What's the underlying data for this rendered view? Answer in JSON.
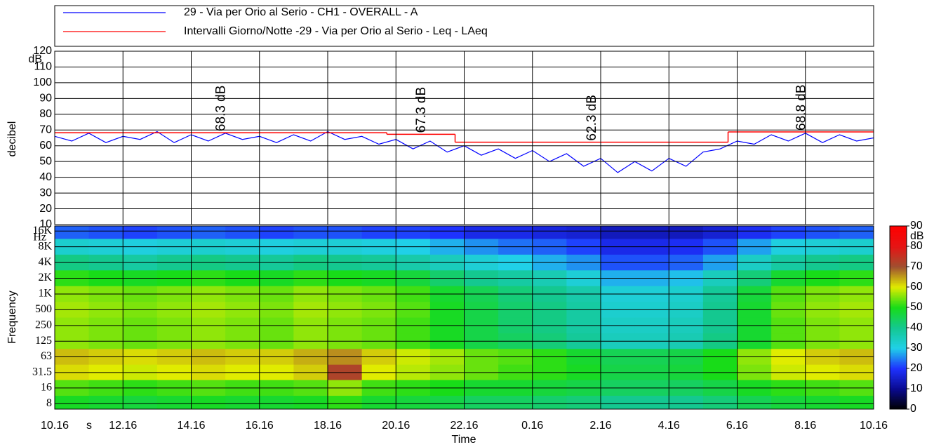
{
  "chart_data": [
    {
      "type": "line",
      "ylabel": "decibel",
      "y_unit": "dB",
      "ylim": [
        10,
        120
      ],
      "yticks": [
        10,
        20,
        30,
        40,
        50,
        60,
        70,
        80,
        90,
        100,
        110,
        120
      ],
      "grid": true,
      "series": [
        {
          "name": "29 - Via per Orio al Serio - CH1 - OVERALL - A",
          "color": "#0000ff",
          "x": [
            "10.16",
            "10.46",
            "11.16",
            "11.46",
            "12.16",
            "12.46",
            "13.16",
            "13.46",
            "14.16",
            "14.46",
            "15.16",
            "15.46",
            "16.16",
            "16.46",
            "17.16",
            "17.46",
            "18.16",
            "18.46",
            "19.16",
            "19.46",
            "20.16",
            "20.46",
            "21.16",
            "21.46",
            "22.16",
            "22.46",
            "23.16",
            "23.46",
            "0.16",
            "0.46",
            "1.16",
            "1.46",
            "2.16",
            "2.46",
            "3.16",
            "3.46",
            "4.16",
            "4.46",
            "5.16",
            "5.46",
            "6.16",
            "6.46",
            "7.16",
            "7.46",
            "8.16",
            "8.46",
            "9.16",
            "9.46",
            "10.16"
          ],
          "values": [
            66,
            63,
            68,
            62,
            66,
            64,
            69,
            62,
            67,
            63,
            68,
            64,
            66,
            62,
            67,
            63,
            69,
            64,
            66,
            61,
            64,
            58,
            63,
            56,
            60,
            54,
            58,
            52,
            57,
            50,
            55,
            47,
            52,
            43,
            50,
            44,
            52,
            47,
            56,
            58,
            63,
            61,
            67,
            63,
            68,
            62,
            67,
            63,
            65
          ]
        },
        {
          "name": "Intervalli Giorno/Notte -29 - Via per Orio al Serio - Leq - LAeq",
          "color": "#ff0000",
          "bins": [
            "10.16",
            "20.00",
            "22.00",
            "6.00",
            "10.16"
          ],
          "values": [
            68.3,
            67.3,
            62.3,
            68.8
          ],
          "value_labels": [
            "68.3 dB",
            "67.3 dB",
            "62.3 dB",
            "68.8 dB"
          ]
        }
      ]
    },
    {
      "type": "heatmap",
      "ylabel": "Frequency",
      "y_unit": "Hz",
      "xlabel": "Time",
      "x_unit": "s",
      "log_y": true,
      "ylim": [
        6.3,
        20000
      ],
      "yticks": [
        8,
        16,
        31.5,
        63,
        125,
        250,
        500,
        {
          "value": 1000,
          "label": "1K"
        },
        {
          "value": 2000,
          "label": "2K"
        },
        {
          "value": 4000,
          "label": "4K"
        },
        {
          "value": 8000,
          "label": "8K"
        },
        {
          "value": 16000,
          "label": "16K"
        }
      ],
      "xlim": [
        "10.16",
        "10.16"
      ],
      "xticks": [
        "10.16",
        "12.16",
        "14.16",
        "16.16",
        "18.16",
        "20.16",
        "22.16",
        "0.16",
        "2.16",
        "4.16",
        "6.16",
        "8.16",
        "10.16"
      ],
      "x": [
        "10.16",
        "11.16",
        "12.16",
        "13.16",
        "14.16",
        "15.16",
        "16.16",
        "17.16",
        "18.16",
        "19.16",
        "20.16",
        "21.16",
        "22.16",
        "23.16",
        "0.16",
        "1.16",
        "2.16",
        "3.16",
        "4.16",
        "5.16",
        "6.16",
        "7.16",
        "8.16",
        "9.16",
        "10.16"
      ],
      "y": [
        16000,
        8000,
        4000,
        2000,
        1000,
        500,
        250,
        125,
        63,
        31.5,
        16,
        8
      ],
      "z": [
        [
          23,
          22,
          21,
          22,
          23,
          22,
          21,
          22,
          22,
          21,
          21,
          20,
          18,
          18,
          17,
          16,
          14,
          14,
          14,
          16,
          19,
          21,
          22,
          23
        ],
        [
          33,
          32,
          31,
          32,
          33,
          32,
          31,
          32,
          32,
          31,
          30,
          28,
          26,
          24,
          23,
          21,
          18,
          18,
          19,
          22,
          27,
          31,
          32,
          33
        ],
        [
          41,
          40,
          38,
          40,
          41,
          40,
          39,
          41,
          40,
          39,
          37,
          35,
          32,
          30,
          28,
          26,
          22,
          22,
          23,
          27,
          34,
          38,
          40,
          41
        ],
        [
          51,
          50,
          49,
          50,
          51,
          50,
          49,
          51,
          50,
          49,
          47,
          43,
          40,
          38,
          36,
          32,
          28,
          28,
          29,
          35,
          42,
          48,
          50,
          51
        ],
        [
          56,
          55,
          54,
          55,
          56,
          55,
          54,
          56,
          55,
          54,
          52,
          48,
          45,
          42,
          40,
          37,
          32,
          32,
          33,
          39,
          47,
          53,
          55,
          56
        ],
        [
          57,
          56,
          55,
          56,
          57,
          56,
          55,
          57,
          56,
          55,
          53,
          49,
          46,
          43,
          41,
          38,
          33,
          33,
          34,
          40,
          48,
          54,
          56,
          57
        ],
        [
          56,
          55,
          54,
          55,
          56,
          55,
          54,
          56,
          55,
          54,
          52,
          49,
          46,
          43,
          41,
          38,
          34,
          34,
          35,
          40,
          48,
          53,
          55,
          56
        ],
        [
          56,
          55,
          54,
          55,
          56,
          55,
          54,
          56,
          55,
          54,
          52,
          49,
          46,
          44,
          42,
          39,
          35,
          35,
          36,
          41,
          48,
          53,
          55,
          56
        ],
        [
          63,
          62,
          61,
          62,
          63,
          62,
          62,
          64,
          66,
          62,
          59,
          57,
          54,
          53,
          51,
          48,
          45,
          45,
          46,
          50,
          56,
          60,
          62,
          63
        ],
        [
          61,
          60,
          59,
          60,
          61,
          60,
          60,
          62,
          72,
          60,
          58,
          56,
          54,
          52,
          51,
          49,
          46,
          46,
          47,
          50,
          55,
          59,
          60,
          61
        ],
        [
          53,
          52,
          51,
          52,
          53,
          52,
          52,
          53,
          56,
          52,
          51,
          50,
          48,
          48,
          47,
          46,
          44,
          44,
          44,
          46,
          49,
          51,
          52,
          53
        ],
        [
          49,
          48,
          47,
          48,
          49,
          48,
          48,
          49,
          51,
          48,
          47,
          46,
          44,
          44,
          43,
          42,
          40,
          40,
          40,
          42,
          45,
          47,
          48,
          49
        ]
      ],
      "clim": [
        0,
        90
      ],
      "cticks": [
        0,
        10,
        20,
        30,
        40,
        50,
        60,
        70,
        80,
        90
      ],
      "c_unit": "dB",
      "colormap": [
        "#000000",
        "#0a0a90",
        "#1e32ff",
        "#20d0e8",
        "#14c890",
        "#18dc18",
        "#e0ec00",
        "#a05030",
        "#e61414",
        "#ff0000"
      ]
    }
  ]
}
